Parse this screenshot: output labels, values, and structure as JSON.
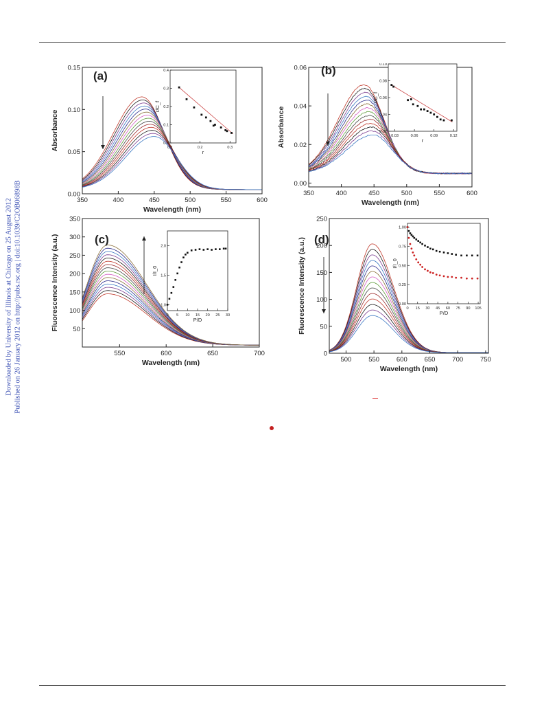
{
  "sidebar": {
    "line1": "Downloaded by University of Illinois at Chicago on 25 August 2012",
    "line2": "Published on 26 January 2012 on http://pubs.rsc.org | doi:10.1039/C2OB06898B"
  },
  "figure": {
    "colors": {
      "axis": "#222222",
      "curve_palette": [
        "#c0392b",
        "#1a1a1a",
        "#7a3b8f",
        "#3a78c2",
        "#2a2a8a",
        "#8b6f3a",
        "#d45ac2",
        "#5d9a3a",
        "#444444",
        "#9a2a2a"
      ],
      "marker_black": "#111111",
      "marker_red": "#cc2222",
      "fit_line": "#cc4444",
      "sidebar_text": "#3a4fb3"
    }
  },
  "chart_data": [
    {
      "id": "a",
      "type": "line",
      "panel_label": "(a)",
      "xlabel": "Wavelength (nm)",
      "ylabel": "Absorbance",
      "xlim": [
        350,
        600
      ],
      "ylim": [
        0.0,
        0.15
      ],
      "xticks": [
        "350",
        "400",
        "450",
        "500",
        "550",
        "600"
      ],
      "yticks": [
        "0.00",
        "0.05",
        "0.10",
        "0.15"
      ],
      "arrow": "down",
      "curve_family": {
        "count": 14,
        "peak_start": 0.115,
        "peak_end": 0.068,
        "peak_x_start": 433,
        "peak_x_end": 450,
        "baseline": 0.005
      },
      "inset": {
        "type": "scatter",
        "xlabel": "r",
        "ylabel": "r/C_f",
        "xlim": [
          0.1,
          0.32
        ],
        "ylim": [
          0.0,
          0.4
        ],
        "xticks": [
          "0.1",
          "0.2",
          "0.3"
        ],
        "yticks": [
          "0.0",
          "0.1",
          "0.2",
          "0.3",
          "0.4"
        ],
        "points": [
          [
            0.13,
            0.305
          ],
          [
            0.155,
            0.24
          ],
          [
            0.18,
            0.195
          ],
          [
            0.205,
            0.155
          ],
          [
            0.22,
            0.14
          ],
          [
            0.235,
            0.12
          ],
          [
            0.25,
            0.1
          ],
          [
            0.27,
            0.085
          ],
          [
            0.285,
            0.07
          ],
          [
            0.29,
            0.065
          ],
          [
            0.305,
            0.055
          ],
          [
            0.245,
            0.095
          ]
        ],
        "fit": [
          [
            0.13,
            0.305
          ],
          [
            0.31,
            0.05
          ]
        ]
      }
    },
    {
      "id": "b",
      "type": "line",
      "panel_label": "(b)",
      "xlabel": "Wavelength (nm)",
      "ylabel": "Absorbance",
      "xlim": [
        350,
        600
      ],
      "ylim": [
        -0.002,
        0.06
      ],
      "xticks": [
        "350",
        "400",
        "450",
        "500",
        "550",
        "600"
      ],
      "yticks": [
        "0.00",
        "0.02",
        "0.04",
        "0.06"
      ],
      "arrow": "down",
      "curve_family": {
        "count": 14,
        "peak_start": 0.051,
        "peak_end": 0.025,
        "peak_x_start": 435,
        "peak_x_end": 448,
        "baseline": 0.005
      },
      "inset": {
        "type": "scatter",
        "xlabel": "r",
        "ylabel": "r/C_f",
        "xlim": [
          0.02,
          0.125
        ],
        "ylim": [
          0.02,
          0.1
        ],
        "xticks": [
          "0.03",
          "0.06",
          "0.09",
          "0.12"
        ],
        "yticks": [
          "0.02",
          "0.04",
          "0.06",
          "0.08",
          "0.10"
        ],
        "points": [
          [
            0.025,
            0.075
          ],
          [
            0.028,
            0.073
          ],
          [
            0.05,
            0.057
          ],
          [
            0.055,
            0.058
          ],
          [
            0.058,
            0.052
          ],
          [
            0.065,
            0.05
          ],
          [
            0.07,
            0.046
          ],
          [
            0.075,
            0.046
          ],
          [
            0.08,
            0.044
          ],
          [
            0.085,
            0.042
          ],
          [
            0.09,
            0.04
          ],
          [
            0.095,
            0.037
          ],
          [
            0.1,
            0.034
          ],
          [
            0.105,
            0.033
          ],
          [
            0.117,
            0.033
          ]
        ],
        "fit": [
          [
            0.025,
            0.075
          ],
          [
            0.118,
            0.031
          ]
        ]
      }
    },
    {
      "id": "c",
      "type": "line",
      "panel_label": "(c)",
      "xlabel": "Wavelength (nm)",
      "ylabel": "Fluorescence Intensity (a.u.)",
      "xlim": [
        510,
        700
      ],
      "ylim": [
        0,
        350
      ],
      "xticks": [
        "550",
        "600",
        "650",
        "700"
      ],
      "yticks": [
        "50",
        "100",
        "150",
        "200",
        "250",
        "300",
        "350"
      ],
      "arrow": "up",
      "curve_family": {
        "count": 16,
        "peak_start": 145,
        "peak_end": 278,
        "peak_x_start": 537,
        "peak_x_end": 537,
        "baseline": 5
      },
      "inset": {
        "type": "scatter",
        "xlabel": "P/D",
        "ylabel": "I/I_0",
        "xlim": [
          0,
          30
        ],
        "ylim": [
          0.9,
          2.25
        ],
        "xticks": [
          "0",
          "5",
          "10",
          "15",
          "20",
          "25",
          "30"
        ],
        "yticks": [
          "1.0",
          "1.5",
          "2.0"
        ],
        "series": [
          {
            "color": "black",
            "points": [
              [
                0,
                1.0
              ],
              [
                1,
                1.1
              ],
              [
                2,
                1.2
              ],
              [
                3,
                1.3
              ],
              [
                4,
                1.42
              ],
              [
                5,
                1.53
              ],
              [
                6,
                1.63
              ],
              [
                7,
                1.72
              ],
              [
                8,
                1.8
              ],
              [
                9,
                1.85
              ],
              [
                10,
                1.88
              ],
              [
                12,
                1.92
              ],
              [
                14,
                1.93
              ],
              [
                16,
                1.94
              ],
              [
                18,
                1.93
              ],
              [
                20,
                1.94
              ],
              [
                22,
                1.93
              ],
              [
                24,
                1.94
              ],
              [
                26,
                1.94
              ],
              [
                28,
                1.95
              ],
              [
                29,
                1.95
              ]
            ]
          }
        ]
      }
    },
    {
      "id": "d",
      "type": "line",
      "panel_label": "(d)",
      "xlabel": "Wavelength (nm)",
      "ylabel": "Fluorescence Intensity (a.u.)",
      "xlim": [
        470,
        755
      ],
      "ylim": [
        0,
        250
      ],
      "xticks": [
        "500",
        "550",
        "600",
        "650",
        "700",
        "750"
      ],
      "yticks": [
        "0",
        "50",
        "100",
        "150",
        "200",
        "250"
      ],
      "arrow": "down",
      "curve_family": {
        "count": 14,
        "peak_start": 203,
        "peak_end": 70,
        "peak_x_start": 547,
        "peak_x_end": 547,
        "baseline": 1
      },
      "inset": {
        "type": "scatter",
        "xlabel": "P/D",
        "ylabel": "I/I_0",
        "xlim": [
          0,
          108
        ],
        "ylim": [
          0,
          1.05
        ],
        "xticks": [
          "0",
          "15",
          "30",
          "45",
          "60",
          "75",
          "90",
          "105"
        ],
        "yticks": [
          "0.00",
          "0.25",
          "0.50",
          "0.75",
          "1.00"
        ],
        "series": [
          {
            "color": "black",
            "points": [
              [
                0,
                1.0
              ],
              [
                2,
                0.95
              ],
              [
                4,
                0.92
              ],
              [
                6,
                0.9
              ],
              [
                8,
                0.88
              ],
              [
                10,
                0.86
              ],
              [
                13,
                0.84
              ],
              [
                16,
                0.82
              ],
              [
                19,
                0.8
              ],
              [
                22,
                0.78
              ],
              [
                26,
                0.76
              ],
              [
                30,
                0.74
              ],
              [
                34,
                0.72
              ],
              [
                38,
                0.71
              ],
              [
                43,
                0.69
              ],
              [
                48,
                0.68
              ],
              [
                54,
                0.67
              ],
              [
                60,
                0.66
              ],
              [
                66,
                0.65
              ],
              [
                72,
                0.64
              ],
              [
                80,
                0.63
              ],
              [
                88,
                0.63
              ],
              [
                96,
                0.63
              ],
              [
                104,
                0.63
              ]
            ]
          },
          {
            "color": "red",
            "points": [
              [
                0,
                1.0
              ],
              [
                2,
                0.86
              ],
              [
                4,
                0.78
              ],
              [
                6,
                0.72
              ],
              [
                8,
                0.67
              ],
              [
                10,
                0.63
              ],
              [
                13,
                0.58
              ],
              [
                16,
                0.54
              ],
              [
                19,
                0.51
              ],
              [
                22,
                0.48
              ],
              [
                26,
                0.45
              ],
              [
                30,
                0.43
              ],
              [
                34,
                0.41
              ],
              [
                38,
                0.4
              ],
              [
                43,
                0.38
              ],
              [
                48,
                0.37
              ],
              [
                54,
                0.36
              ],
              [
                60,
                0.35
              ],
              [
                66,
                0.35
              ],
              [
                72,
                0.34
              ],
              [
                80,
                0.34
              ],
              [
                88,
                0.33
              ],
              [
                96,
                0.33
              ],
              [
                104,
                0.33
              ]
            ]
          }
        ]
      }
    }
  ]
}
